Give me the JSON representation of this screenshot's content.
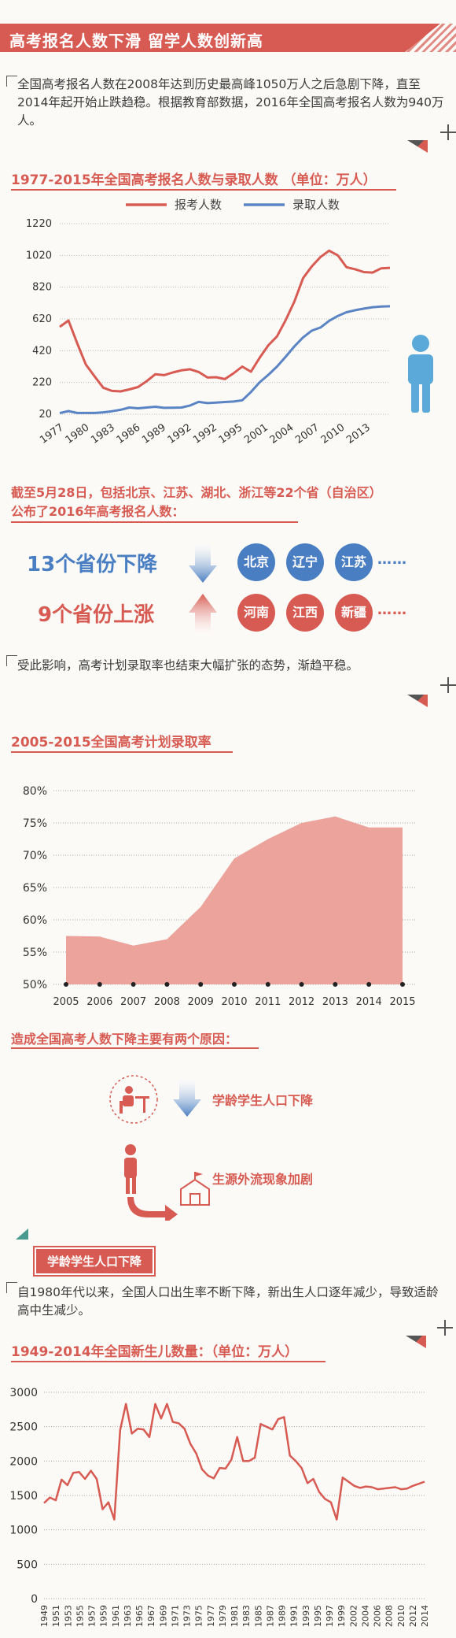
{
  "header": {
    "title": "高考报名人数下滑 留学人数创新高"
  },
  "intro": {
    "text": "全国高考报名人数在2008年达到历史最高峰1050万人之后急剧下降，直至2014年起开始止跌趋稳。根据教育部数据，2016年全国高考报名人数为940万人。"
  },
  "provinces": {
    "heading_line1": "截至5月28日，包括北京、江苏、湖北、浙江等22个省（自治区）",
    "heading_line2": "公布了2016年高考报名人数：",
    "down_label": "13个省份下降",
    "up_label": "9个省份上涨",
    "down_list": [
      "北京",
      "辽宁",
      "江苏"
    ],
    "up_list": [
      "河南",
      "江西",
      "新疆"
    ],
    "ellipsis": "……",
    "colors": {
      "down": "#4a7ec2",
      "up": "#d75b52"
    }
  },
  "effect": {
    "text": "受此影响，高考计划录取率也结束大幅扩张的态势，渐趋平稳。"
  },
  "reasons": {
    "title": "造成全国高考人数下降主要有两个原因：",
    "items": [
      "学龄学生人口下降",
      "生源外流现象加剧"
    ]
  },
  "section_tag": {
    "label": "学龄学生人口下降"
  },
  "birth_intro": {
    "text": "自1980年代以来，全国人口出生率不断下降，新出生人口逐年减少，导致适龄高中生减少。"
  },
  "chart_data": [
    {
      "type": "line",
      "title": "1977-2015年全国高考报名人数与录取人数 （单位：万人）",
      "x": [
        1977,
        1978,
        1979,
        1980,
        1981,
        1982,
        1983,
        1984,
        1985,
        1986,
        1987,
        1988,
        1989,
        1990,
        1991,
        1992,
        1993,
        1994,
        1995,
        1996,
        1997,
        1998,
        1999,
        2000,
        2001,
        2002,
        2003,
        2004,
        2005,
        2006,
        2007,
        2008,
        2009,
        2010,
        2011,
        2012,
        2013,
        2014,
        2015
      ],
      "x_tick_labels": [
        "1977",
        "1980",
        "1983",
        "1986",
        "1989",
        "1992",
        "1992",
        "1995",
        "2001",
        "2004",
        "2007",
        "2010",
        "2013"
      ],
      "series": [
        {
          "name": "报考人数",
          "color": "#d75b52",
          "values": [
            570,
            610,
            468,
            333,
            259,
            187,
            167,
            164,
            176,
            191,
            228,
            272,
            266,
            283,
            296,
            303,
            286,
            251,
            253,
            241,
            278,
            320,
            288,
            375,
            454,
            510,
            613,
            729,
            877,
            950,
            1010,
            1050,
            1020,
            946,
            933,
            915,
            912,
            939,
            942
          ]
        },
        {
          "name": "录取人数",
          "color": "#5b84c4",
          "values": [
            27,
            40,
            28,
            28,
            28,
            32,
            39,
            48,
            62,
            57,
            62,
            67,
            60,
            61,
            62,
            75,
            98,
            90,
            93,
            97,
            100,
            108,
            160,
            221,
            268,
            320,
            382,
            447,
            504,
            546,
            566,
            608,
            639,
            662,
            675,
            685,
            694,
            698,
            700
          ]
        }
      ],
      "y_ticks": [
        20,
        220,
        420,
        620,
        820,
        1020,
        1220
      ],
      "ylim": [
        20,
        1220
      ]
    },
    {
      "type": "area",
      "title": "2005-2015全国高考计划录取率",
      "x": [
        "2005",
        "2006",
        "2007",
        "2008",
        "2009",
        "2010",
        "2011",
        "2012",
        "2013",
        "2014",
        "2015"
      ],
      "values": [
        57.5,
        57.4,
        56,
        57,
        62,
        69.5,
        72.5,
        75,
        76,
        74.3,
        74.3
      ],
      "y_tick_labels": [
        "50%",
        "55%",
        "60%",
        "65%",
        "70%",
        "75%",
        "80%"
      ],
      "ylim": [
        50,
        80
      ],
      "color": "#eba39c"
    },
    {
      "type": "line",
      "title": "1949-2014年全国新生儿数量：（单位：万人）",
      "x": [
        1949,
        1950,
        1951,
        1952,
        1953,
        1954,
        1955,
        1956,
        1957,
        1958,
        1959,
        1960,
        1961,
        1962,
        1963,
        1964,
        1965,
        1966,
        1967,
        1968,
        1969,
        1970,
        1971,
        1972,
        1973,
        1974,
        1975,
        1976,
        1977,
        1978,
        1979,
        1980,
        1981,
        1982,
        1983,
        1984,
        1985,
        1986,
        1987,
        1988,
        1989,
        1990,
        1991,
        1992,
        1993,
        1994,
        1995,
        1996,
        1997,
        1998,
        1999,
        2000,
        2001,
        2002,
        2003,
        2004,
        2005,
        2006,
        2007,
        2008,
        2009,
        2010,
        2011,
        2012,
        2013,
        2014
      ],
      "values": [
        1390,
        1470,
        1430,
        1730,
        1650,
        1830,
        1840,
        1740,
        1860,
        1740,
        1300,
        1400,
        1150,
        2450,
        2830,
        2400,
        2470,
        2460,
        2350,
        2830,
        2620,
        2830,
        2570,
        2550,
        2470,
        2250,
        2110,
        1880,
        1790,
        1750,
        1900,
        1890,
        2020,
        2350,
        2000,
        2000,
        2050,
        2540,
        2500,
        2460,
        2610,
        2640,
        2080,
        2000,
        1900,
        1680,
        1740,
        1550,
        1450,
        1400,
        1150,
        1760,
        1700,
        1640,
        1610,
        1630,
        1620,
        1590,
        1600,
        1610,
        1620,
        1590,
        1600,
        1640,
        1670,
        1700
      ],
      "x_tick_labels": [
        "1949",
        "1951",
        "1953",
        "1955",
        "1957",
        "1959",
        "1961",
        "1963",
        "1965",
        "1967",
        "1969",
        "1971",
        "1973",
        "1975",
        "1977",
        "1979",
        "1981",
        "1983",
        "1985",
        "1987",
        "1989",
        "1991",
        "1993",
        "1995",
        "1997",
        "1999",
        "2002",
        "2004",
        "2006",
        "2008",
        "2010",
        "2012",
        "2014"
      ],
      "y_ticks": [
        0,
        500,
        1000,
        1500,
        2000,
        2500,
        3000
      ],
      "ylim": [
        0,
        3000
      ],
      "color": "#d75b52"
    }
  ]
}
